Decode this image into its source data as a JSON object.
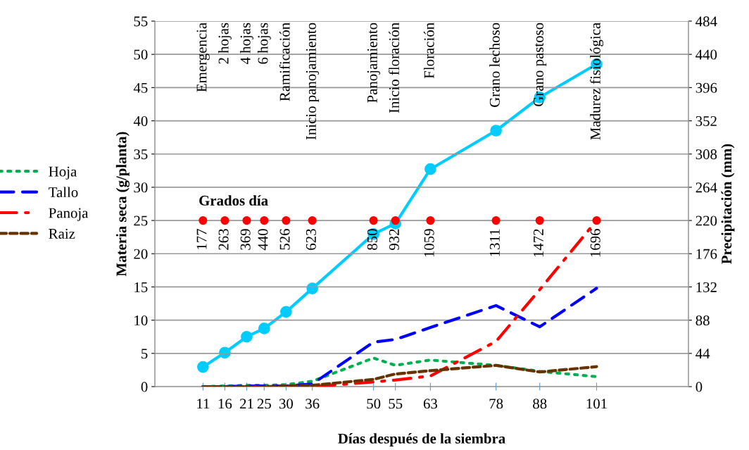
{
  "chart_data": {
    "type": "line",
    "xlabel": "Días después de la siembra",
    "ylabel": "Materia seca (g/planta)",
    "y2label": "Precipitación (mm)",
    "x": [
      11,
      16,
      21,
      25,
      30,
      36,
      50,
      55,
      63,
      78,
      88,
      101
    ],
    "series": [
      {
        "name": "Hoja",
        "color": "#00b050",
        "line_style": "dotted",
        "marker": "none",
        "values": [
          0,
          0.1,
          0.2,
          0.2,
          0.3,
          0.8,
          4.3,
          3.2,
          4.0,
          3.2,
          2.3,
          1.5
        ]
      },
      {
        "name": "Tallo",
        "color": "#0000ff",
        "line_style": "dashed",
        "marker": "none",
        "values": [
          0,
          0,
          0.1,
          0.1,
          0.1,
          0.4,
          6.7,
          7.1,
          8.9,
          12.2,
          9.0,
          14.8
        ]
      },
      {
        "name": "Panoja",
        "color": "#ff0000",
        "line_style": "dashdot",
        "marker": "none",
        "values": [
          0,
          0,
          0,
          0,
          0,
          0,
          0.7,
          1.0,
          1.6,
          6.8,
          14.6,
          25.0
        ]
      },
      {
        "name": "Raiz",
        "color": "#663300",
        "line_style": "dashed_short",
        "marker": "none",
        "values": [
          0,
          0,
          0,
          0,
          0.1,
          0.2,
          1.1,
          1.9,
          2.4,
          3.2,
          2.2,
          3.0
        ]
      },
      {
        "color": "#00ccff",
        "axis": "y2",
        "line_style": "solid",
        "marker": "circle",
        "values": [
          26,
          45,
          66,
          77,
          99,
          130,
          202,
          216,
          288,
          339,
          383,
          427
        ]
      },
      {
        "type": "scatter",
        "color": "#ff0000",
        "marker": "circle",
        "values": [
          25,
          25,
          25,
          25,
          25,
          25,
          25,
          25,
          25,
          25,
          25,
          25
        ]
      }
    ],
    "xlim": [
      0,
      122
    ],
    "xticks": [
      11,
      16,
      21,
      25,
      30,
      36,
      50,
      55,
      63,
      78,
      88,
      101
    ],
    "ylim": [
      0,
      55
    ],
    "yticks": [
      0,
      5,
      10,
      15,
      20,
      25,
      30,
      35,
      40,
      45,
      50,
      55
    ],
    "y2lim": [
      0,
      484
    ],
    "y2ticks": [
      0,
      44,
      88,
      132,
      176,
      220,
      264,
      308,
      352,
      396,
      440,
      484
    ],
    "grid": "y",
    "legend": "left",
    "annotations": [
      "Grados día",
      {
        "text": "177",
        "x": 11,
        "y": 25
      },
      {
        "text": "263",
        "x": 16,
        "y": 25
      },
      {
        "text": "369",
        "x": 21,
        "y": 25
      },
      {
        "text": "440",
        "x": 25,
        "y": 25
      },
      {
        "text": "526",
        "x": 30,
        "y": 25
      },
      {
        "text": "623",
        "x": 36,
        "y": 25
      },
      {
        "text": "850",
        "x": 50,
        "y": 25
      },
      {
        "text": "932",
        "x": 55,
        "y": 25
      },
      {
        "text": "1059",
        "x": 63,
        "y": 25
      },
      {
        "text": "1311",
        "x": 78,
        "y": 25
      },
      {
        "text": "1472",
        "x": 88,
        "y": 25
      },
      {
        "text": "1696",
        "x": 101,
        "y": 25
      },
      "Emergencia",
      "2 hojas",
      "4 hojas",
      "6 hojas",
      "Ramificación",
      "Inicio panojamiento",
      "Panojamiento",
      "Inicio floración",
      "Floración",
      "Grano lechoso",
      "Grano pastoso",
      "Madurez fisiológica"
    ]
  }
}
